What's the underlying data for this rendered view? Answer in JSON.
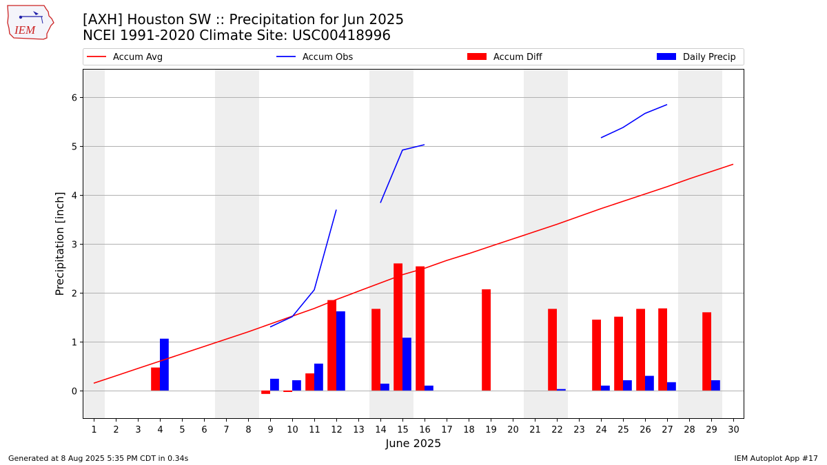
{
  "logo": {
    "text": "IEM"
  },
  "title": {
    "line1": "[AXH] Houston SW :: Precipitation for Jun 2025",
    "line2": "NCEI 1991-2020 Climate Site: USC00418996"
  },
  "footer": {
    "generated": "Generated at 8 Aug 2025 5:35 PM CDT in 0.34s",
    "app": "IEM Autoplot App #17"
  },
  "colors": {
    "accum_avg": "#ff0000",
    "accum_obs": "#0000ff",
    "accum_diff": "#ff0000",
    "daily_precip": "#0000ff",
    "weekend_shade": "#eeeeee",
    "grid": "#b0b0b0"
  },
  "chart_data": {
    "type": "bar",
    "xlabel": "June 2025",
    "ylabel": "Precipitation [inch]",
    "xlim": [
      0.5,
      30.5
    ],
    "ylim": [
      -0.58,
      6.58
    ],
    "yticks": [
      0,
      1,
      2,
      3,
      4,
      5,
      6
    ],
    "x": [
      1,
      2,
      3,
      4,
      5,
      6,
      7,
      8,
      9,
      10,
      11,
      12,
      13,
      14,
      15,
      16,
      17,
      18,
      19,
      20,
      21,
      22,
      23,
      24,
      25,
      26,
      27,
      28,
      29,
      30
    ],
    "grid": "y",
    "legend": "top, above plot",
    "weekend_days": [
      1,
      7,
      8,
      14,
      15,
      21,
      22,
      28,
      29
    ],
    "series": [
      {
        "name": "Accum Avg",
        "kind": "line",
        "values": [
          0.15,
          0.3,
          0.45,
          0.6,
          0.75,
          0.9,
          1.05,
          1.2,
          1.36,
          1.52,
          1.68,
          1.86,
          2.03,
          2.2,
          2.37,
          2.5,
          2.66,
          2.8,
          2.95,
          3.1,
          3.25,
          3.4,
          3.56,
          3.72,
          3.87,
          4.02,
          4.17,
          4.33,
          4.48,
          4.63
        ]
      },
      {
        "name": "Accum Obs",
        "kind": "line",
        "values": [
          null,
          null,
          null,
          null,
          null,
          null,
          null,
          null,
          1.3,
          1.51,
          2.06,
          3.7,
          null,
          3.84,
          4.92,
          5.03,
          null,
          null,
          null,
          null,
          null,
          null,
          null,
          5.17,
          5.38,
          5.67,
          5.85,
          null,
          null,
          null
        ]
      },
      {
        "name": "Accum Diff",
        "kind": "bar",
        "values": [
          null,
          null,
          null,
          0.47,
          null,
          null,
          null,
          null,
          -0.07,
          -0.03,
          0.35,
          1.85,
          null,
          1.67,
          2.6,
          2.54,
          null,
          null,
          2.07,
          null,
          null,
          1.67,
          null,
          1.45,
          1.51,
          1.67,
          1.68,
          null,
          1.6,
          null
        ]
      },
      {
        "name": "Daily Precip",
        "kind": "bar",
        "values": [
          null,
          null,
          null,
          1.06,
          null,
          null,
          null,
          null,
          0.24,
          0.21,
          0.55,
          1.62,
          null,
          0.14,
          1.08,
          0.1,
          null,
          null,
          null,
          null,
          null,
          0.03,
          null,
          0.1,
          0.21,
          0.3,
          0.17,
          null,
          0.21,
          null
        ]
      }
    ]
  }
}
